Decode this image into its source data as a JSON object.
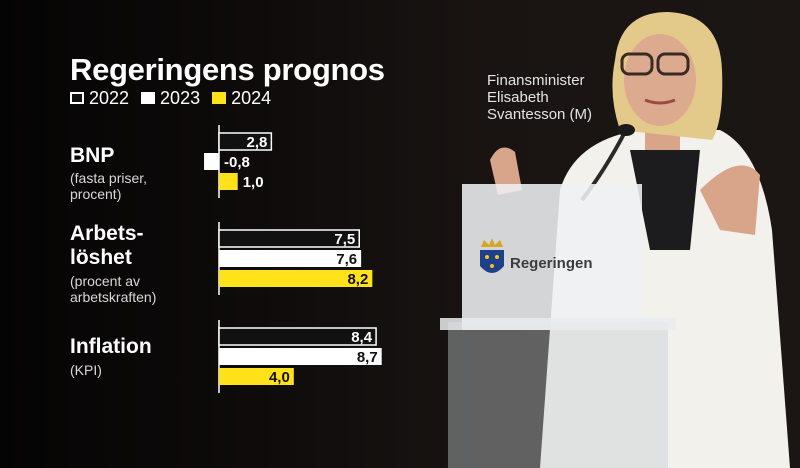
{
  "title": "Regeringens prognos",
  "speaker_caption": "Finansminister\nElisabeth\nSvantesson (M)",
  "podium_logo_text": "Regeringen",
  "colors": {
    "series_2022": "#111111",
    "series_2023": "#ffffff",
    "series_2024": "#ffe21a",
    "background": "#0d0a09"
  },
  "chart_data": {
    "type": "bar",
    "orientation": "horizontal",
    "title": "Regeringens prognos",
    "legend_position": "top",
    "series": [
      {
        "name": "2022",
        "color": "#111111"
      },
      {
        "name": "2023",
        "color": "#ffffff"
      },
      {
        "name": "2024",
        "color": "#ffe21a"
      }
    ],
    "categories": [
      {
        "name": "BNP",
        "subtitle": "(fasta priser,\nprocent)",
        "values": [
          2.8,
          -0.8,
          1.0
        ],
        "labels": [
          "2,8",
          "-0,8",
          "1,0"
        ]
      },
      {
        "name": "Arbets-\nlöshet",
        "subtitle": "(procent av\narbetskraften)",
        "values": [
          7.5,
          7.6,
          8.2
        ],
        "labels": [
          "7,5",
          "7,6",
          "8,2"
        ]
      },
      {
        "name": "Inflation",
        "subtitle": "(KPI)",
        "values": [
          8.4,
          8.7,
          4.0
        ],
        "labels": [
          "8,4",
          "8,7",
          "4,0"
        ]
      }
    ]
  }
}
